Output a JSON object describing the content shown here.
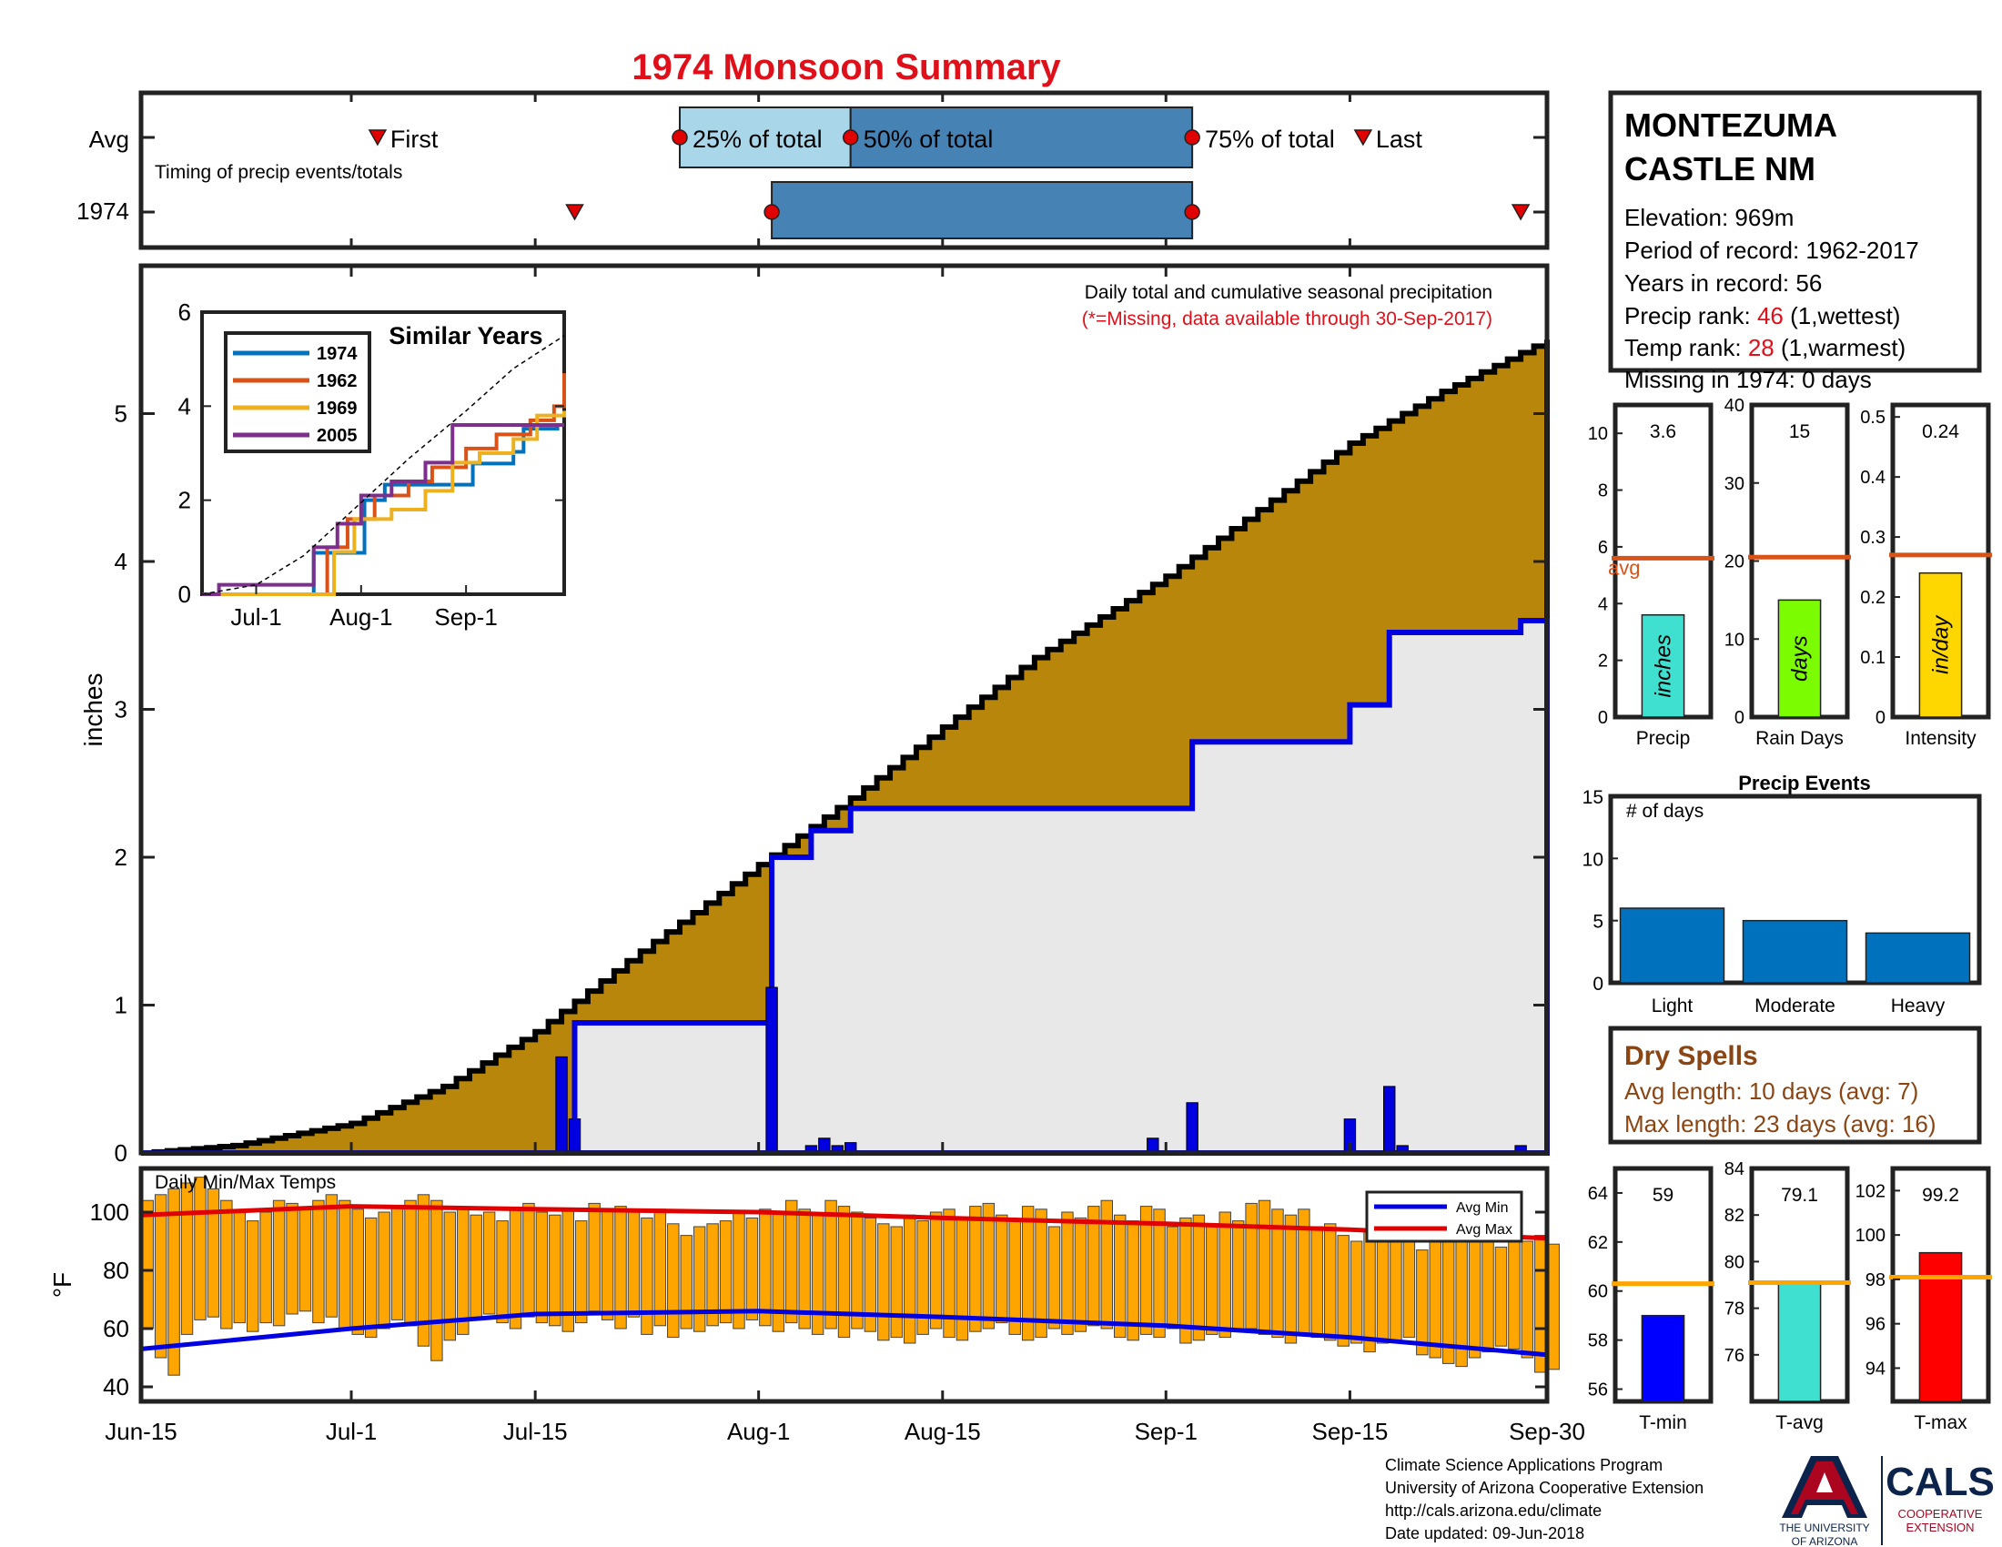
{
  "title": "1974 Monsoon Summary",
  "colors": {
    "title": "#e0101a",
    "fill_brown": "#b8860b",
    "fill_gray": "#e8e8e8",
    "obs_blue": "#0000e0",
    "bar_blue": "#0072bd",
    "temp_orange": "#ffa500",
    "avg_red": "#e00000",
    "avg_blue": "#0000e0",
    "rank_red": "#e0101a",
    "dry_brown": "#8b4513"
  },
  "timing": {
    "row_labels": [
      "Avg",
      "1974"
    ],
    "note": "Timing of precip events/totals",
    "labels": {
      "first": "First",
      "q25": "25% of total",
      "q50": "50% of total",
      "q75": "75% of total",
      "last": "Last"
    },
    "avg": {
      "first": "Jul-3",
      "q25": "Jul-26",
      "q50": "Aug-8",
      "q75": "Sep-3",
      "last": "Sep-16"
    },
    "year": {
      "first": "Jul-18",
      "q25": "",
      "q50": "Aug-2",
      "q75": "Sep-3",
      "last": "Sep-28"
    }
  },
  "station": {
    "name_line1": "MONTEZUMA",
    "name_line2": "CASTLE NM",
    "elevation": "Elevation: 969m",
    "period": "Period of record: 1962-2017",
    "years": "Years in record: 56",
    "precip_rank_label": "Precip rank: ",
    "precip_rank": "46",
    "precip_rank_note": " (1,wettest)",
    "temp_rank_label": "Temp rank: ",
    "temp_rank": "28",
    "temp_rank_note": " (1,warmest)",
    "missing": "Missing in 1974: 0 days"
  },
  "main": {
    "ylabel": "inches",
    "caption": "Daily total and cumulative seasonal precipitation",
    "missing_note": "(*=Missing, data available through 30-Sep-2017)",
    "xticks": [
      "Jun-15",
      "Jul-1",
      "Jul-15",
      "Aug-1",
      "Aug-15",
      "Sep-1",
      "Sep-15",
      "Sep-30"
    ]
  },
  "temps": {
    "label": "Daily Min/Max Temps",
    "ylabel": "°F",
    "legend_min": "Avg Min",
    "legend_max": "Avg Max"
  },
  "inset": {
    "title": "Similar Years",
    "xticks": [
      "Jul-1",
      "Aug-1",
      "Sep-1"
    ]
  },
  "small_precip": [
    {
      "value": "3.6",
      "label": "Precip",
      "unit": "inches",
      "color": "#40e0d0"
    },
    {
      "value": "15",
      "label": "Rain Days",
      "unit": "days",
      "color": "#7cfc00"
    },
    {
      "value": "0.24",
      "label": "Intensity",
      "unit": "in/day",
      "color": "#ffd700"
    }
  ],
  "avg_label": "avg",
  "events": {
    "title": "Precip Events",
    "ylabel": "# of days",
    "categories": [
      "Light",
      "Moderate",
      "Heavy"
    ],
    "values": [
      6,
      5,
      4
    ],
    "ylim": [
      0,
      15
    ]
  },
  "dry": {
    "title": "Dry Spells",
    "avg": "Avg length: 10 days (avg: 7)",
    "max": "Max length: 23 days (avg: 16)"
  },
  "small_temp": [
    {
      "value": "59",
      "label": "T-min",
      "color": "#0000ff"
    },
    {
      "value": "79.1",
      "label": "T-avg",
      "color": "#40e0d0"
    },
    {
      "value": "99.2",
      "label": "T-max",
      "color": "#ff0000"
    }
  ],
  "footer": [
    "Climate Science Applications Program",
    "University of Arizona Cooperative Extension",
    "http://cals.arizona.edu/climate",
    " Date updated: 09-Jun-2018"
  ],
  "logo": {
    "ua1": "THE UNIVERSITY",
    "ua2": "OF ARIZONA",
    "cals": "CALS",
    "coop1": "COOPERATIVE",
    "coop2": "EXTENSION"
  },
  "chart_data": [
    {
      "type": "line",
      "title": "Daily total and cumulative seasonal precipitation",
      "ylabel": "inches",
      "ylim": [
        0,
        6
      ],
      "xlim": [
        "Jun-15",
        "Sep-30"
      ],
      "series": [
        {
          "name": "Avg",
          "style": "area",
          "x": [
            "Jun-15",
            "Jun-22",
            "Jul-1",
            "Jul-8",
            "Jul-15",
            "Jul-22",
            "Aug-1",
            "Aug-8",
            "Aug-15",
            "Aug-22",
            "Sep-1",
            "Sep-8",
            "Sep-15",
            "Sep-22",
            "Sep-30"
          ],
          "values": [
            0,
            0.05,
            0.2,
            0.45,
            0.82,
            1.3,
            1.95,
            2.4,
            2.88,
            3.35,
            3.9,
            4.35,
            4.8,
            5.15,
            5.5
          ]
        },
        {
          "name": "1974",
          "style": "step",
          "x": [
            "Jun-15",
            "Jul-17",
            "Jul-18",
            "Aug-1",
            "Aug-2",
            "Aug-5",
            "Aug-8",
            "Aug-31",
            "Sep-3",
            "Sep-15",
            "Sep-18",
            "Sep-28",
            "Sep-30"
          ],
          "values": [
            0,
            0,
            0.88,
            0.88,
            2.0,
            2.18,
            2.33,
            2.33,
            2.78,
            3.03,
            3.52,
            3.6,
            3.6
          ]
        }
      ],
      "daily_bars": {
        "x": [
          "Jul-17",
          "Jul-18",
          "Aug-2",
          "Aug-5",
          "Aug-6",
          "Aug-7",
          "Aug-8",
          "Aug-31",
          "Sep-3",
          "Sep-15",
          "Sep-18",
          "Sep-19",
          "Sep-28"
        ],
        "values": [
          0.65,
          0.23,
          1.12,
          0.05,
          0.1,
          0.05,
          0.07,
          0.1,
          0.34,
          0.23,
          0.45,
          0.05,
          0.05
        ]
      }
    },
    {
      "type": "bar",
      "title": "Daily Min/Max Temps",
      "ylabel": "°F",
      "ylim": [
        35,
        115
      ],
      "xlim": [
        "Jun-15",
        "Sep-30"
      ],
      "series": [
        {
          "name": "Avg Max",
          "style": "line",
          "x": [
            "Jun-15",
            "Jul-1",
            "Jul-15",
            "Aug-1",
            "Aug-15",
            "Sep-1",
            "Sep-15",
            "Sep-30"
          ],
          "values": [
            99,
            102,
            101,
            100,
            98,
            96,
            94,
            91
          ]
        },
        {
          "name": "Avg Min",
          "style": "line",
          "x": [
            "Jun-15",
            "Jul-1",
            "Jul-15",
            "Aug-1",
            "Aug-15",
            "Sep-1",
            "Sep-15",
            "Sep-30"
          ],
          "values": [
            53,
            60,
            65,
            66,
            64,
            61,
            57,
            51
          ]
        }
      ],
      "daily_range": {
        "day_max": [
          104,
          106,
          108,
          110,
          112,
          108,
          104,
          100,
          97,
          100,
          104,
          103,
          101,
          104,
          106,
          104,
          101,
          98,
          100,
          102,
          104,
          106,
          104,
          100,
          101,
          99,
          100,
          97,
          101,
          103,
          100,
          99,
          101,
          97,
          103,
          101,
          102,
          100,
          98,
          101,
          96,
          92,
          95,
          96,
          97,
          100,
          98,
          101,
          100,
          104,
          101,
          99,
          104,
          102,
          100,
          98,
          96,
          95,
          99,
          97,
          100,
          101,
          98,
          102,
          103,
          99,
          97,
          102,
          101,
          95,
          100,
          98,
          102,
          104,
          99,
          97,
          102,
          101,
          95,
          98,
          99,
          96,
          100,
          97,
          103,
          104,
          101,
          99,
          101,
          95,
          96,
          92,
          90,
          94,
          96,
          95,
          91,
          87,
          90,
          94,
          92,
          93,
          90,
          88,
          91,
          90,
          92,
          89
        ],
        "day_min": [
          60,
          50,
          44,
          58,
          63,
          64,
          60,
          62,
          59,
          62,
          61,
          65,
          66,
          62,
          64,
          60,
          58,
          57,
          60,
          63,
          61,
          54,
          49,
          56,
          58,
          63,
          65,
          62,
          60,
          64,
          62,
          61,
          59,
          62,
          66,
          63,
          60,
          64,
          58,
          61,
          57,
          60,
          59,
          61,
          62,
          60,
          63,
          61,
          59,
          62,
          60,
          58,
          60,
          57,
          60,
          59,
          56,
          57,
          55,
          58,
          60,
          57,
          56,
          59,
          60,
          62,
          58,
          56,
          57,
          60,
          58,
          59,
          61,
          60,
          57,
          56,
          58,
          57,
          60,
          55,
          56,
          58,
          57,
          59,
          60,
          58,
          57,
          55,
          58,
          57,
          56,
          54,
          55,
          52,
          55,
          56,
          57,
          51,
          50,
          48,
          47,
          50,
          52,
          54,
          53,
          50,
          45,
          46
        ]
      }
    },
    {
      "type": "line",
      "title": "Similar Years",
      "ylim": [
        0,
        6
      ],
      "xlim": [
        "Jun-15",
        "Sep-30"
      ],
      "series": [
        {
          "name": "1974",
          "x": [
            "Jun-15",
            "Jul-17",
            "Jul-18",
            "Aug-1",
            "Aug-2",
            "Aug-8",
            "Aug-31",
            "Sep-3",
            "Sep-15",
            "Sep-18",
            "Sep-28",
            "Sep-30"
          ],
          "values": [
            0,
            0,
            0.88,
            0.88,
            2.0,
            2.33,
            2.33,
            2.78,
            3.03,
            3.52,
            3.6,
            3.6
          ]
        },
        {
          "name": "1962",
          "x": [
            "Jun-15",
            "Jul-20",
            "Jul-22",
            "Jul-28",
            "Aug-5",
            "Aug-15",
            "Aug-22",
            "Sep-1",
            "Sep-10",
            "Sep-20",
            "Sep-27",
            "Sep-30"
          ],
          "values": [
            0,
            0,
            1.0,
            1.6,
            2.1,
            2.4,
            2.7,
            3.1,
            3.4,
            3.7,
            4.0,
            4.7
          ]
        },
        {
          "name": "1969",
          "x": [
            "Jun-15",
            "Jul-20",
            "Jul-24",
            "Jul-30",
            "Aug-10",
            "Aug-20",
            "Aug-28",
            "Sep-5",
            "Sep-15",
            "Sep-22",
            "Sep-30"
          ],
          "values": [
            0,
            0,
            0.9,
            1.6,
            1.8,
            2.2,
            2.8,
            3.0,
            3.3,
            3.8,
            3.9
          ]
        },
        {
          "name": "2005",
          "x": [
            "Jun-15",
            "Jun-20",
            "Jul-15",
            "Jul-18",
            "Jul-25",
            "Aug-1",
            "Aug-10",
            "Aug-20",
            "Aug-28",
            "Sep-30"
          ],
          "values": [
            0,
            0.2,
            0.2,
            1.0,
            1.5,
            2.1,
            2.4,
            2.8,
            3.6,
            3.6
          ]
        },
        {
          "name": "Avg",
          "style": "dashed",
          "x": [
            "Jun-15",
            "Jul-1",
            "Jul-15",
            "Aug-1",
            "Aug-15",
            "Sep-1",
            "Sep-15",
            "Sep-30"
          ],
          "values": [
            0,
            0.2,
            0.82,
            1.95,
            2.88,
            3.9,
            4.8,
            5.5
          ]
        }
      ]
    },
    {
      "type": "bar",
      "title": "Precip",
      "categories": [
        "Precip"
      ],
      "values": [
        3.6
      ],
      "avg": 5.6,
      "ylim": [
        0,
        11
      ]
    },
    {
      "type": "bar",
      "title": "Rain Days",
      "categories": [
        "Rain Days"
      ],
      "values": [
        15
      ],
      "avg": 20.5,
      "ylim": [
        0,
        40
      ]
    },
    {
      "type": "bar",
      "title": "Intensity",
      "categories": [
        "Intensity"
      ],
      "values": [
        0.24
      ],
      "avg": 0.27,
      "ylim": [
        0,
        0.52
      ]
    },
    {
      "type": "bar",
      "title": "Precip Events",
      "ylabel": "# of days",
      "categories": [
        "Light",
        "Moderate",
        "Heavy"
      ],
      "values": [
        6,
        5,
        4
      ],
      "ylim": [
        0,
        15
      ]
    },
    {
      "type": "bar",
      "title": "T-min",
      "categories": [
        "T-min"
      ],
      "values": [
        59
      ],
      "avg": 60.3,
      "ylim": [
        55.5,
        65
      ]
    },
    {
      "type": "bar",
      "title": "T-avg",
      "categories": [
        "T-avg"
      ],
      "values": [
        79.1
      ],
      "avg": 79.1,
      "ylim": [
        74,
        84
      ]
    },
    {
      "type": "bar",
      "title": "T-max",
      "categories": [
        "T-max"
      ],
      "values": [
        99.2
      ],
      "avg": 98.1,
      "ylim": [
        92.5,
        103
      ]
    }
  ]
}
